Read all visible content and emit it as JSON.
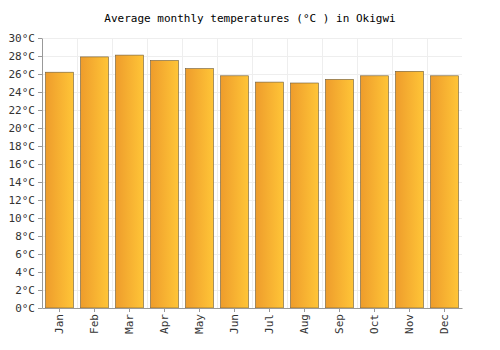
{
  "chart_data": {
    "type": "bar",
    "title": "Average monthly temperatures (°C ) in Okigwi",
    "categories": [
      "Jan",
      "Feb",
      "Mar",
      "Apr",
      "May",
      "Jun",
      "Jul",
      "Aug",
      "Sep",
      "Oct",
      "Nov",
      "Dec"
    ],
    "values": [
      26.2,
      27.9,
      28.1,
      27.5,
      26.6,
      25.8,
      25.1,
      25.0,
      25.4,
      25.8,
      26.3,
      25.8
    ],
    "color": "#fba52e",
    "ylim": [
      0,
      30
    ],
    "yticks": [
      {
        "value": 0,
        "label": "0°C"
      },
      {
        "value": 2,
        "label": "2°C"
      },
      {
        "value": 4,
        "label": "4°C"
      },
      {
        "value": 6,
        "label": "6°C"
      },
      {
        "value": 8,
        "label": "8°C"
      },
      {
        "value": 10,
        "label": "10°C"
      },
      {
        "value": 12,
        "label": "12°C"
      },
      {
        "value": 14,
        "label": "14°C"
      },
      {
        "value": 16,
        "label": "16°C"
      },
      {
        "value": 18,
        "label": "18°C"
      },
      {
        "value": 20,
        "label": "20°C"
      },
      {
        "value": 22,
        "label": "22°C"
      },
      {
        "value": 24,
        "label": "24°C"
      },
      {
        "value": 26,
        "label": "26°C"
      },
      {
        "value": 28,
        "label": "28°C"
      },
      {
        "value": 30,
        "label": "30°C"
      }
    ],
    "grid": true
  }
}
